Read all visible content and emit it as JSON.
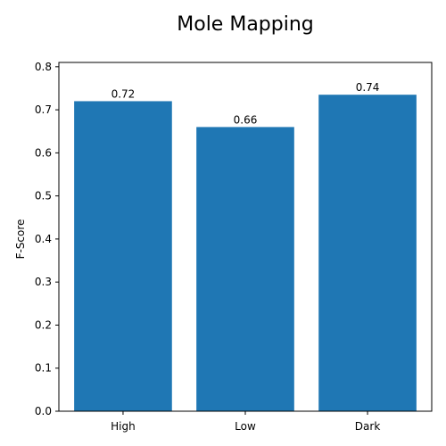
{
  "chart_data": {
    "type": "bar",
    "title": "Mole Mapping",
    "xlabel": "",
    "ylabel": "F-Score",
    "categories": [
      "High",
      "Low",
      "Dark"
    ],
    "values": [
      0.72,
      0.66,
      0.735
    ],
    "data_labels": [
      "0.72",
      "0.66",
      "0.74"
    ],
    "ylim": [
      0,
      0.81
    ],
    "yticks": [
      0.0,
      0.1,
      0.2,
      0.3,
      0.4,
      0.5,
      0.6,
      0.7,
      0.8
    ],
    "ytick_labels": [
      "0.0",
      "0.1",
      "0.2",
      "0.3",
      "0.4",
      "0.5",
      "0.6",
      "0.7",
      "0.8"
    ],
    "grid": false,
    "bar_color": "#1f77b4"
  }
}
